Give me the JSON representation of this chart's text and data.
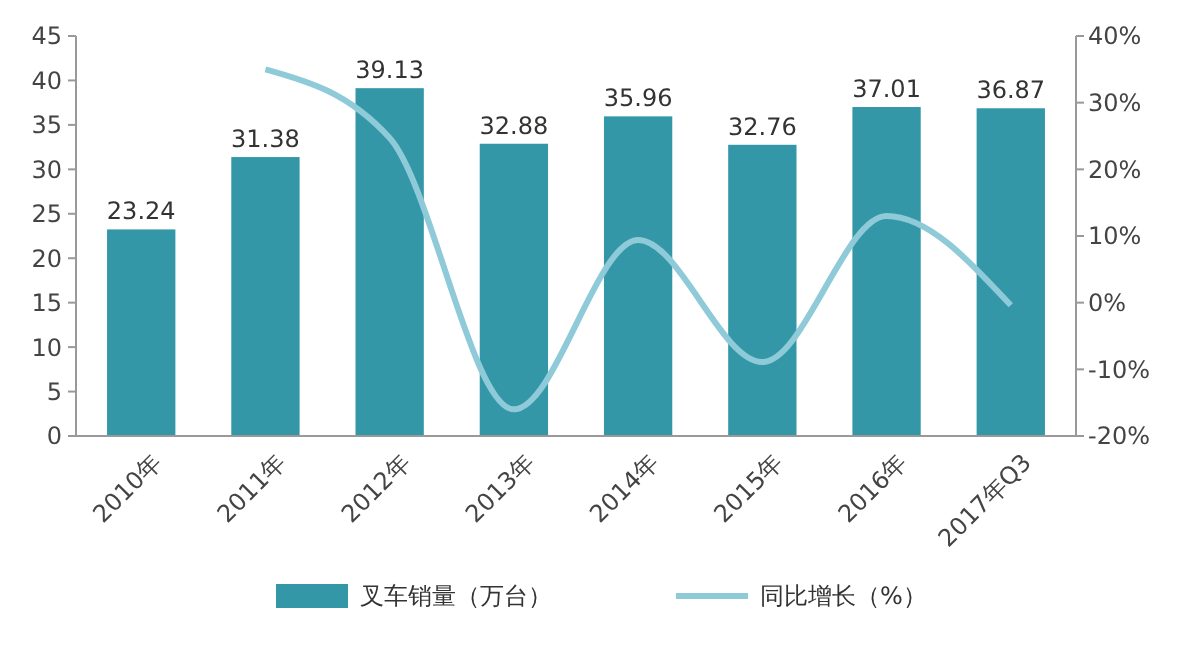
{
  "chart_data": {
    "type": "bar",
    "categories": [
      "2010年",
      "2011年",
      "2012年",
      "2013年",
      "2014年",
      "2015年",
      "2016年",
      "2017年Q3"
    ],
    "series": [
      {
        "name": "叉车销量（万台）",
        "color": "#3497a8",
        "values": [
          23.24,
          31.38,
          39.13,
          32.88,
          35.96,
          32.76,
          37.01,
          36.87
        ],
        "value_labels": [
          "23.24",
          "31.38",
          "39.13",
          "32.88",
          "35.96",
          "32.76",
          "37.01",
          "36.87"
        ]
      },
      {
        "name": "同比增长（%）",
        "type": "line",
        "axis": "y2",
        "color": "#8ecad8",
        "values": [
          null,
          35,
          24.7,
          -16,
          9.4,
          -8.9,
          13,
          -0.4
        ]
      }
    ],
    "ylim": [
      0,
      45
    ],
    "yticks": [
      0,
      5,
      10,
      15,
      20,
      25,
      30,
      35,
      40,
      45
    ],
    "y2lim": [
      -20,
      40
    ],
    "y2ticks": [
      {
        "value": -20,
        "label": "-20%"
      },
      {
        "value": -10,
        "label": "-10%"
      },
      {
        "value": 0,
        "label": "0%"
      },
      {
        "value": 10,
        "label": "10%"
      },
      {
        "value": 20,
        "label": "20%"
      },
      {
        "value": 30,
        "label": "30%"
      },
      {
        "value": 40,
        "label": "40%"
      }
    ],
    "legend": "bottom",
    "marker": "none",
    "line_style": "solid",
    "grid": false
  }
}
